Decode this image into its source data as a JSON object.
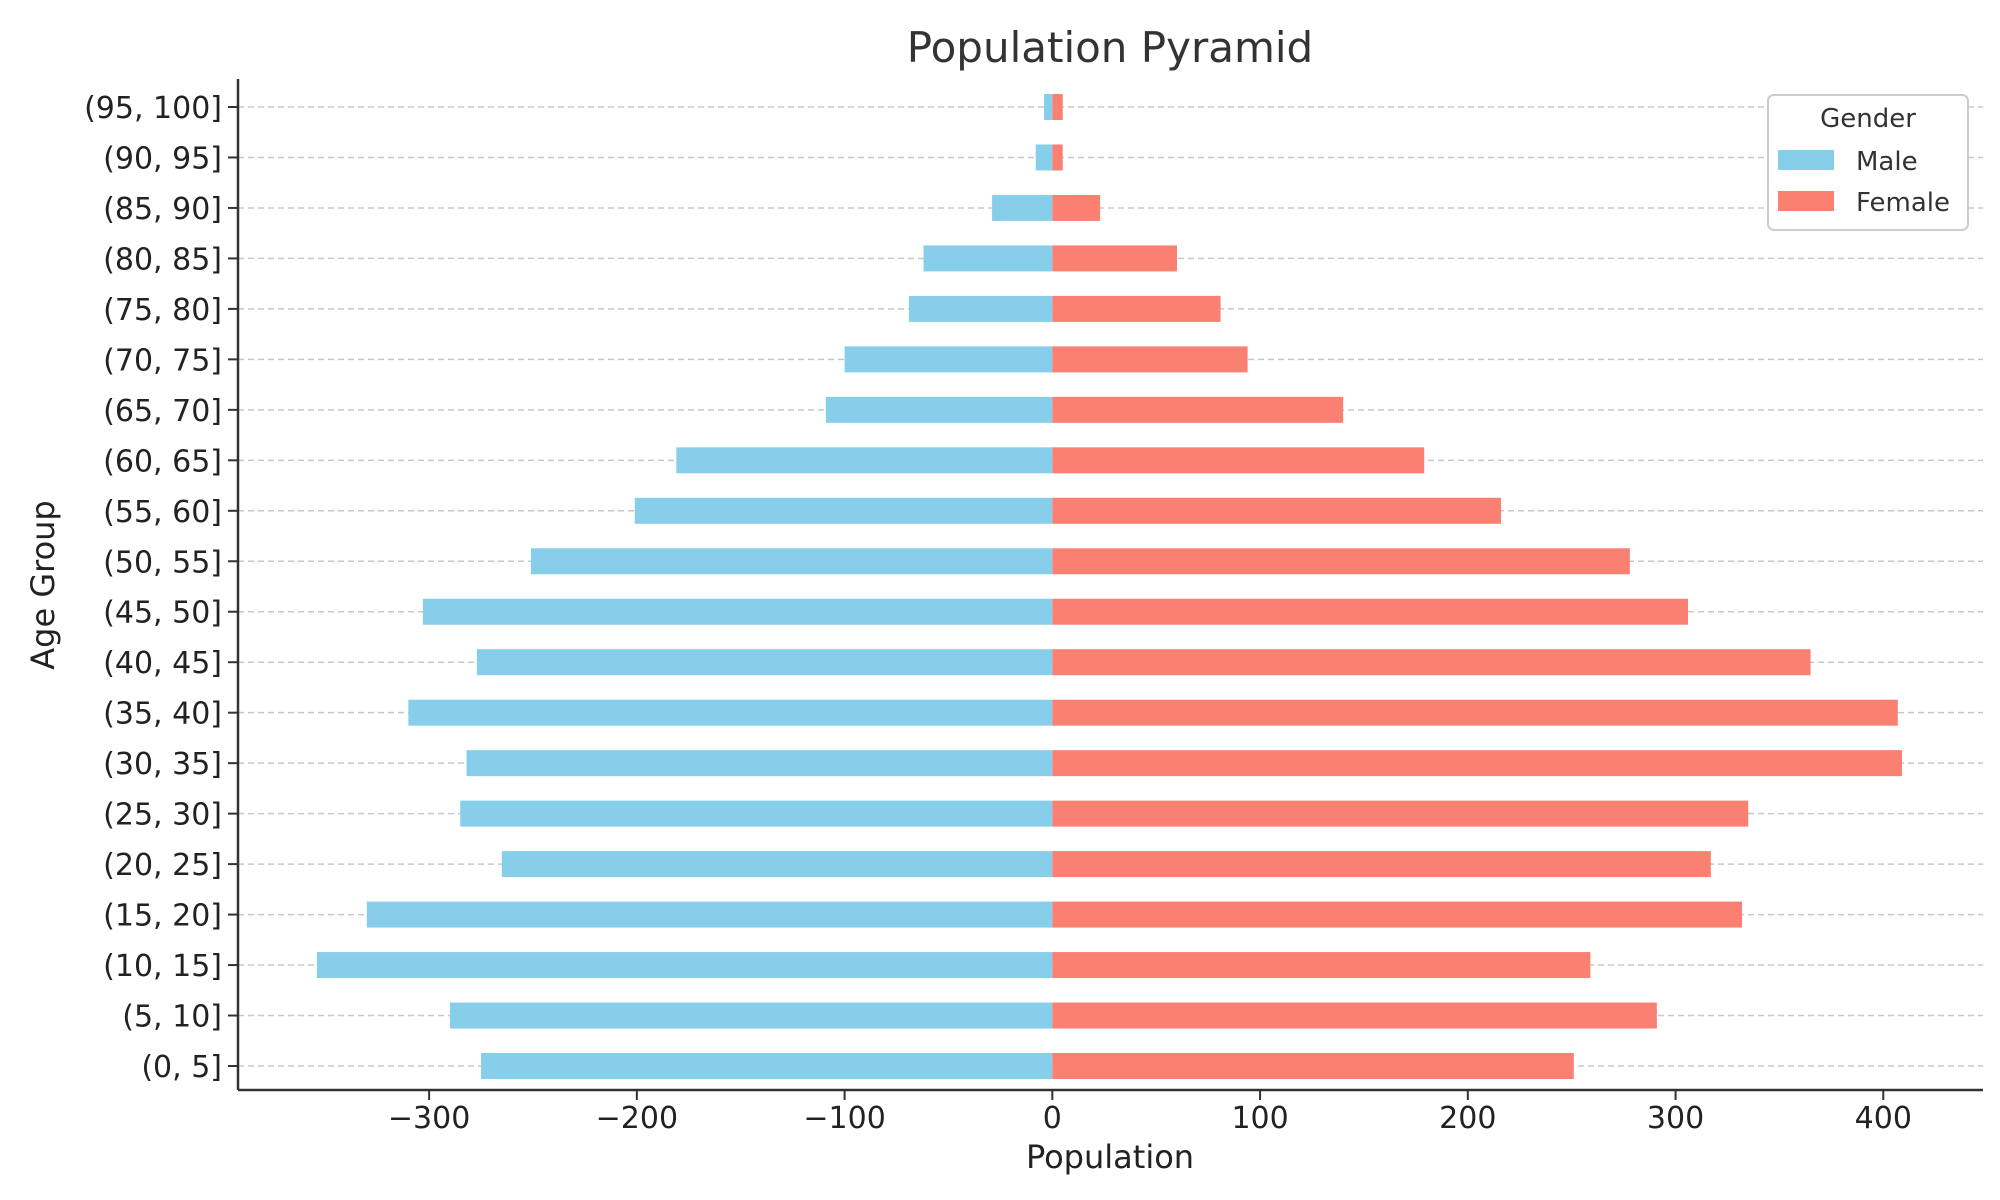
{
  "chart_data": {
    "type": "bar",
    "orientation": "horizontal",
    "title": "Population Pyramid",
    "xlabel": "Population",
    "ylabel": "Age Group",
    "categories": [
      "(0, 5]",
      "(5, 10]",
      "(10, 15]",
      "(15, 20]",
      "(20, 25]",
      "(25, 30]",
      "(30, 35]",
      "(35, 40]",
      "(40, 45]",
      "(45, 50]",
      "(50, 55]",
      "(55, 60]",
      "(60, 65]",
      "(65, 70]",
      "(70, 75]",
      "(75, 80]",
      "(80, 85]",
      "(85, 90]",
      "(90, 95]",
      "(95, 100]"
    ],
    "series": [
      {
        "name": "Male",
        "color": "#87CEEB",
        "values": [
          -275,
          -290,
          -354,
          -330,
          -265,
          -285,
          -282,
          -310,
          -277,
          -303,
          -251,
          -201,
          -181,
          -109,
          -100,
          -69,
          -62,
          -29,
          -8,
          -4
        ]
      },
      {
        "name": "Female",
        "color": "#FA8072",
        "values": [
          251,
          291,
          259,
          332,
          317,
          335,
          409,
          407,
          365,
          306,
          278,
          216,
          179,
          140,
          94,
          81,
          60,
          23,
          5,
          5
        ]
      }
    ],
    "xlim": [
      -392,
      448
    ],
    "xticks": [
      -300,
      -200,
      -100,
      0,
      100,
      200,
      300,
      400
    ],
    "xtick_labels": [
      "−300",
      "−200",
      "−100",
      "0",
      "100",
      "200",
      "300",
      "400"
    ],
    "grid": "horizontal dashed",
    "legend": {
      "title": "Gender",
      "position": "top-right"
    }
  }
}
